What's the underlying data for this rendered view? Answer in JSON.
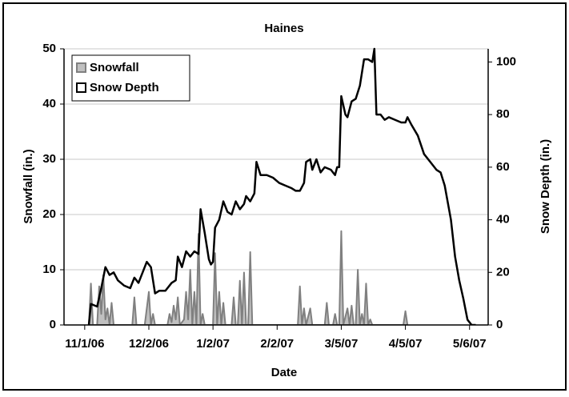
{
  "chart_data": {
    "type": "area-line",
    "title": "Haines",
    "xlabel": "Date",
    "ylabel": "Snowfall (in.)",
    "y2label": "Snow Depth (in.)",
    "xlim": [
      "2006-10-22",
      "2007-05-15"
    ],
    "xticks": [
      {
        "value": "2006-11-01",
        "label": "11/1/06"
      },
      {
        "value": "2006-12-02",
        "label": "12/2/06"
      },
      {
        "value": "2007-01-02",
        "label": "1/2/07"
      },
      {
        "value": "2007-02-02",
        "label": "2/2/07"
      },
      {
        "value": "2007-03-05",
        "label": "3/5/07"
      },
      {
        "value": "2007-04-05",
        "label": "4/5/07"
      },
      {
        "value": "2007-05-06",
        "label": "5/6/07"
      }
    ],
    "ylim": [
      0,
      50
    ],
    "yticks": [
      0,
      10,
      20,
      30,
      40,
      50
    ],
    "y2lim": [
      0,
      105
    ],
    "y2ticks": [
      0,
      20,
      40,
      60,
      80,
      100
    ],
    "grid": true,
    "legend": "upper left",
    "series": [
      {
        "name": "Snowfall",
        "kind": "area",
        "color": "#c0c0c0",
        "edge": "#808080",
        "x": [
          "2006-11-03",
          "2006-11-04",
          "2006-11-05",
          "2006-11-07",
          "2006-11-08",
          "2006-11-09",
          "2006-11-10",
          "2006-11-11",
          "2006-11-12",
          "2006-11-13",
          "2006-11-14",
          "2006-11-15",
          "2006-11-24",
          "2006-11-25",
          "2006-11-26",
          "2006-11-30",
          "2006-12-02",
          "2006-12-03",
          "2006-12-04",
          "2006-12-05",
          "2006-12-11",
          "2006-12-12",
          "2006-12-13",
          "2006-12-14",
          "2006-12-15",
          "2006-12-16",
          "2006-12-17",
          "2006-12-19",
          "2006-12-20",
          "2006-12-21",
          "2006-12-22",
          "2006-12-23",
          "2006-12-24",
          "2006-12-25",
          "2006-12-26",
          "2006-12-27",
          "2006-12-28",
          "2006-12-29",
          "2007-01-02",
          "2007-01-03",
          "2007-01-04",
          "2007-01-05",
          "2007-01-06",
          "2007-01-07",
          "2007-01-08",
          "2007-01-11",
          "2007-01-12",
          "2007-01-13",
          "2007-01-14",
          "2007-01-15",
          "2007-01-16",
          "2007-01-17",
          "2007-01-18",
          "2007-01-19",
          "2007-01-20",
          "2007-01-21",
          "2007-02-12",
          "2007-02-13",
          "2007-02-14",
          "2007-02-15",
          "2007-02-16",
          "2007-02-18",
          "2007-02-19",
          "2007-02-25",
          "2007-02-26",
          "2007-02-27",
          "2007-03-01",
          "2007-03-02",
          "2007-03-03",
          "2007-03-04",
          "2007-03-05",
          "2007-03-06",
          "2007-03-08",
          "2007-03-09",
          "2007-03-10",
          "2007-03-11",
          "2007-03-12",
          "2007-03-13",
          "2007-03-14",
          "2007-03-15",
          "2007-03-16",
          "2007-03-17",
          "2007-03-18",
          "2007-03-19",
          "2007-03-20",
          "2007-04-04",
          "2007-04-05",
          "2007-04-06"
        ],
        "values": [
          0,
          7.5,
          0,
          0,
          7,
          2,
          9,
          1,
          3,
          0,
          4,
          0,
          0,
          5,
          0,
          0,
          6,
          0,
          2,
          0,
          0,
          2,
          0.5,
          3.5,
          1,
          5,
          0,
          1,
          6,
          1,
          10,
          0,
          6,
          0,
          16.5,
          0,
          2,
          0,
          0,
          13,
          0,
          6,
          0,
          4,
          0,
          0,
          5,
          0,
          0,
          8,
          0,
          9.5,
          0,
          0,
          13.2,
          0,
          0,
          7,
          0,
          3,
          0,
          3,
          0,
          0,
          4,
          0,
          0,
          2,
          0,
          0,
          17,
          0,
          3,
          0,
          3.5,
          0,
          0,
          10,
          0,
          2,
          0,
          7.5,
          0,
          1,
          0,
          0,
          2.5,
          0
        ]
      },
      {
        "name": "Snow Depth",
        "kind": "line",
        "axis": "y2",
        "color": "#000000",
        "x": [
          "2006-11-03",
          "2006-11-04",
          "2006-11-07",
          "2006-11-09",
          "2006-11-11",
          "2006-11-13",
          "2006-11-15",
          "2006-11-17",
          "2006-11-20",
          "2006-11-23",
          "2006-11-25",
          "2006-11-27",
          "2006-11-29",
          "2006-12-01",
          "2006-12-03",
          "2006-12-05",
          "2006-12-07",
          "2006-12-10",
          "2006-12-13",
          "2006-12-15",
          "2006-12-16",
          "2006-12-18",
          "2006-12-20",
          "2006-12-22",
          "2006-12-24",
          "2006-12-26",
          "2006-12-27",
          "2006-12-29",
          "2006-12-31",
          "2007-01-01",
          "2007-01-02",
          "2007-01-03",
          "2007-01-05",
          "2007-01-07",
          "2007-01-09",
          "2007-01-11",
          "2007-01-13",
          "2007-01-15",
          "2007-01-17",
          "2007-01-18",
          "2007-01-20",
          "2007-01-22",
          "2007-01-23",
          "2007-01-25",
          "2007-01-28",
          "2007-01-31",
          "2007-02-03",
          "2007-02-06",
          "2007-02-09",
          "2007-02-11",
          "2007-02-13",
          "2007-02-15",
          "2007-02-16",
          "2007-02-18",
          "2007-02-19",
          "2007-02-21",
          "2007-02-23",
          "2007-02-25",
          "2007-02-28",
          "2007-03-02",
          "2007-03-03",
          "2007-03-04",
          "2007-03-05",
          "2007-03-07",
          "2007-03-08",
          "2007-03-10",
          "2007-03-12",
          "2007-03-14",
          "2007-03-16",
          "2007-03-18",
          "2007-03-20",
          "2007-03-21",
          "2007-03-22",
          "2007-03-24",
          "2007-03-26",
          "2007-03-28",
          "2007-03-31",
          "2007-04-03",
          "2007-04-05",
          "2007-04-06",
          "2007-04-08",
          "2007-04-11",
          "2007-04-14",
          "2007-04-17",
          "2007-04-20",
          "2007-04-22",
          "2007-04-24",
          "2007-04-27",
          "2007-04-29",
          "2007-05-01",
          "2007-05-03",
          "2007-05-05",
          "2007-05-07",
          "2007-05-09"
        ],
        "values": [
          0,
          8,
          7,
          14,
          22,
          19,
          20,
          17,
          15,
          14,
          18,
          16,
          20,
          24,
          22,
          12,
          13,
          13,
          16,
          17,
          26,
          22,
          28,
          26,
          28,
          27,
          44,
          35,
          25,
          23,
          24,
          37,
          40,
          47,
          43,
          42,
          47,
          44,
          46,
          49,
          47,
          50,
          62,
          57,
          57,
          56,
          54,
          53,
          52,
          51,
          51,
          54,
          62,
          63,
          59,
          63,
          58,
          60,
          59,
          57,
          60,
          60,
          87,
          80,
          79,
          85,
          86,
          91,
          101,
          101,
          100,
          105,
          80,
          80,
          78,
          79,
          78,
          77,
          77,
          79,
          76,
          72,
          65,
          62,
          59,
          58,
          53,
          40,
          26,
          17,
          10,
          2,
          0,
          0
        ]
      }
    ]
  }
}
